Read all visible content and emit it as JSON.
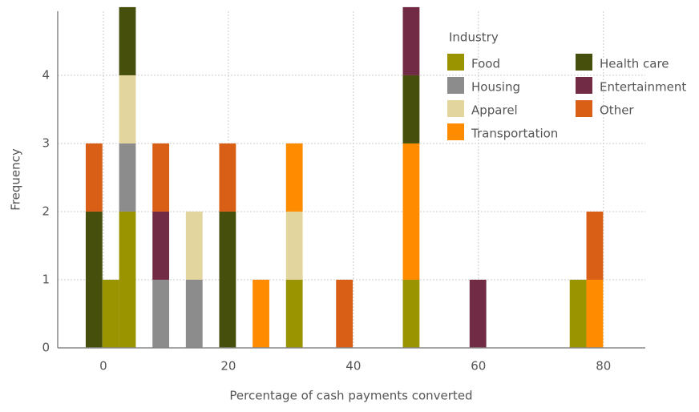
{
  "chart_data": {
    "type": "histogram",
    "stacked": true,
    "xlabel": "Percentage of cash payments converted",
    "ylabel": "Frequency",
    "bins": [
      -2.82,
      -0.15,
      2.52,
      5.19,
      7.86,
      10.53,
      13.2,
      15.87,
      18.54,
      21.21,
      23.88,
      26.55,
      29.22,
      31.89,
      34.56,
      37.23,
      39.9,
      42.57,
      45.24,
      47.91,
      50.58,
      53.25,
      55.92,
      58.59,
      61.26,
      63.93,
      66.6,
      69.27,
      71.94,
      74.61,
      77.28,
      79.95
    ],
    "series": [
      {
        "name": "Food",
        "color": "#9a9400",
        "values": [
          0,
          1,
          2,
          0,
          0,
          0,
          0,
          0,
          0,
          0,
          0,
          0,
          1,
          0,
          0,
          0,
          0,
          0,
          0,
          1,
          0,
          0,
          0,
          0,
          0,
          0,
          0,
          0,
          0,
          1,
          0
        ]
      },
      {
        "name": "Housing",
        "color": "#8c8c8c",
        "values": [
          0,
          0,
          1,
          0,
          1,
          0,
          1,
          0,
          0,
          0,
          0,
          0,
          0,
          0,
          0,
          0,
          0,
          0,
          0,
          0,
          0,
          0,
          0,
          0,
          0,
          0,
          0,
          0,
          0,
          0,
          0
        ]
      },
      {
        "name": "Apparel",
        "color": "#e3d59e",
        "values": [
          0,
          0,
          1,
          0,
          0,
          0,
          1,
          0,
          0,
          0,
          0,
          0,
          1,
          0,
          0,
          0,
          0,
          0,
          0,
          0,
          0,
          0,
          0,
          0,
          0,
          0,
          0,
          0,
          0,
          0,
          0
        ]
      },
      {
        "name": "Transportation",
        "color": "#ff8c00",
        "values": [
          0,
          0,
          0,
          0,
          0,
          0,
          0,
          0,
          0,
          0,
          1,
          0,
          1,
          0,
          0,
          0,
          0,
          0,
          0,
          2,
          0,
          0,
          0,
          0,
          0,
          0,
          0,
          0,
          0,
          0,
          1
        ]
      },
      {
        "name": "Health care",
        "color": "#474f0c",
        "values": [
          2,
          0,
          1,
          0,
          0,
          0,
          0,
          0,
          2,
          0,
          0,
          0,
          0,
          0,
          0,
          0,
          0,
          0,
          0,
          1,
          0,
          0,
          0,
          0,
          0,
          0,
          0,
          0,
          0,
          0,
          0
        ]
      },
      {
        "name": "Entertainment",
        "color": "#722b45",
        "values": [
          0,
          0,
          0,
          0,
          1,
          0,
          0,
          0,
          0,
          0,
          0,
          0,
          0,
          0,
          0,
          0,
          0,
          0,
          0,
          1,
          0,
          0,
          0,
          1,
          0,
          0,
          0,
          0,
          0,
          0,
          0
        ]
      },
      {
        "name": "Other",
        "color": "#d95f17",
        "values": [
          1,
          0,
          0,
          0,
          1,
          0,
          0,
          0,
          1,
          0,
          0,
          0,
          0,
          0,
          0,
          1,
          0,
          0,
          0,
          0,
          0,
          0,
          0,
          0,
          0,
          0,
          0,
          0,
          0,
          0,
          1
        ]
      }
    ],
    "legend_title": "Industry",
    "legend": "upper right",
    "xlim": [
      -7.3,
      86.7
    ],
    "ylim": [
      0,
      4.94
    ],
    "xticks": [
      0,
      20,
      40,
      60,
      80
    ],
    "yticks": [
      0,
      1,
      2,
      3,
      4
    ],
    "grid": true
  }
}
